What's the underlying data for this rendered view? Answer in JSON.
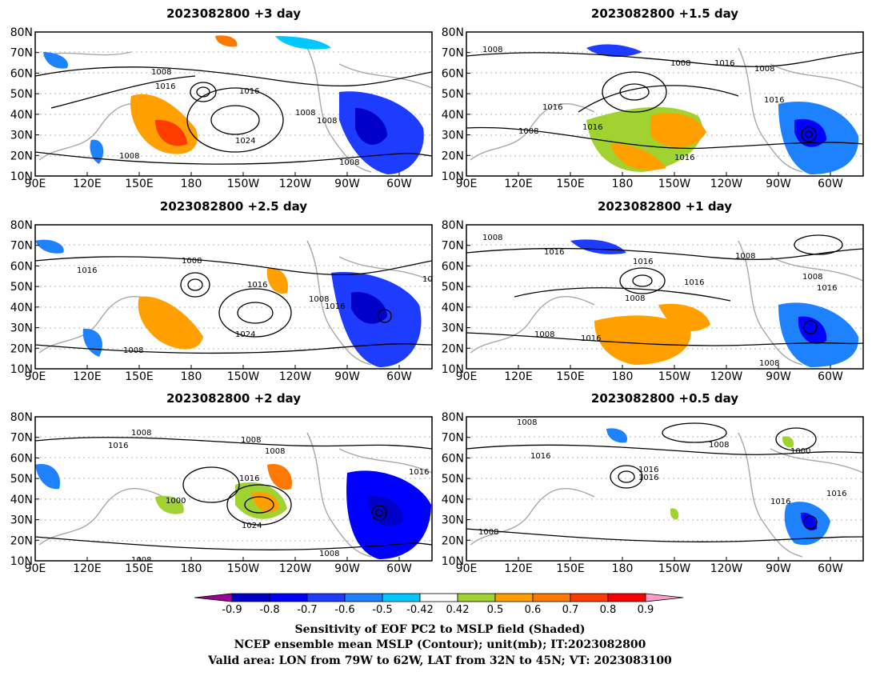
{
  "panels": [
    {
      "title": "2023082800  +3 day",
      "contour_labels": [
        "1008",
        "1016",
        "1016",
        "1024",
        "1008",
        "1008",
        "1008",
        "1008"
      ]
    },
    {
      "title": "2023082800  +1.5 day",
      "contour_labels": [
        "1008",
        "1008",
        "1016",
        "1008",
        "1016",
        "1016",
        "1016",
        "1008",
        "1016"
      ]
    },
    {
      "title": "2023082800  +2.5 day",
      "contour_labels": [
        "1008",
        "1016",
        "1016",
        "1008",
        "1016",
        "1024",
        "1008",
        "10"
      ]
    },
    {
      "title": "2023082800  +1 day",
      "contour_labels": [
        "1008",
        "1016",
        "1016",
        "1008",
        "1008",
        "1016",
        "1008",
        "1016",
        "1008",
        "1016",
        "1008"
      ]
    },
    {
      "title": "2023082800  +2 day",
      "contour_labels": [
        "1008",
        "1016",
        "1008",
        "1008",
        "1000",
        "1016",
        "1024",
        "1008",
        "1016",
        "1008"
      ]
    },
    {
      "title": "2023082800  +0.5 day",
      "contour_labels": [
        "1008",
        "1016",
        "1016",
        "1016",
        "1008",
        "1000",
        "1016",
        "1016",
        "1008"
      ]
    }
  ],
  "axes": {
    "lat_ticks": [
      "10N",
      "20N",
      "30N",
      "40N",
      "50N",
      "60N",
      "70N",
      "80N"
    ],
    "lon_ticks": [
      "90E",
      "120E",
      "150E",
      "180",
      "150W",
      "120W",
      "90W",
      "60W"
    ]
  },
  "colorbar": {
    "ticks": [
      "-0.9",
      "-0.8",
      "-0.7",
      "-0.6",
      "-0.5",
      "-0.42",
      "0.42",
      "0.5",
      "0.6",
      "0.7",
      "0.8",
      "0.9"
    ],
    "colors": [
      "#a0009a",
      "#0000c8",
      "#0000ff",
      "#1e3cff",
      "#1e82ff",
      "#00c8ff",
      "#ffffff",
      "#a0d232",
      "#ffa000",
      "#ff7800",
      "#ff3c00",
      "#ff0000",
      "#ff9ec8"
    ]
  },
  "caption": {
    "line1": "Sensitivity of EOF PC2 to MSLP field (Shaded)",
    "line2": "NCEP ensemble mean MSLP (Contour); unit(mb); IT:2023082800",
    "line3": "Valid area: LON from 79W to 62W, LAT from 32N to 45N; VT: 2023083100"
  }
}
